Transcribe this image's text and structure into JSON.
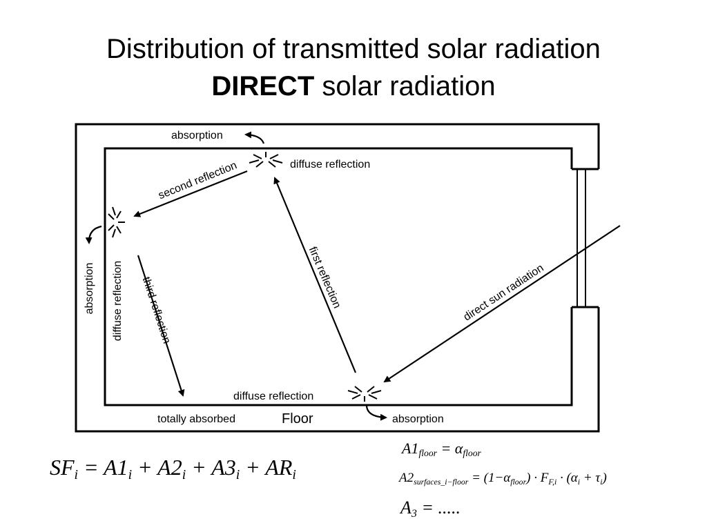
{
  "title": {
    "line1": "Distribution of transmitted solar radiation",
    "line2_bold": "DIRECT",
    "line2_rest": "solar radiation"
  },
  "labels": {
    "absorption_top": "absorption",
    "diffuse_top": "diffuse reflection",
    "second_reflection": "second reflection",
    "diffuse_left": "diffuse reflection",
    "absorption_left": "absorption",
    "third_reflection": "third reflection",
    "first_reflection": "first reflection",
    "direct_sun": "direct sun radiation",
    "diffuse_bottom": "diffuse reflection",
    "totally_absorbed": "totally absorbed",
    "floor": "Floor",
    "absorption_bottom": "absorption"
  },
  "equations": {
    "main": [
      {
        "text": "SF"
      },
      {
        "text": "i",
        "sub": true
      },
      {
        "text": " = A1"
      },
      {
        "text": "i",
        "sub": true
      },
      {
        "text": " + A2"
      },
      {
        "text": "i",
        "sub": true
      },
      {
        "text": " + A3"
      },
      {
        "text": "i",
        "sub": true
      },
      {
        "text": " + AR"
      },
      {
        "text": "i",
        "sub": true
      }
    ],
    "a1": [
      {
        "text": "A1"
      },
      {
        "text": "floor",
        "sub": true
      },
      {
        "text": " = α"
      },
      {
        "text": "floor",
        "sub": true
      }
    ],
    "a2": [
      {
        "text": "A2"
      },
      {
        "text": "surfaces_i−floor",
        "sub": true
      },
      {
        "text": " = (1−α"
      },
      {
        "text": "floor",
        "sub": true
      },
      {
        "text": ") · F"
      },
      {
        "text": "F,i",
        "sub": true
      },
      {
        "text": " · (α"
      },
      {
        "text": "i",
        "sub": true
      },
      {
        "text": " + τ"
      },
      {
        "text": "i",
        "sub": true
      },
      {
        "text": ")"
      }
    ],
    "a3": [
      {
        "text": "A"
      },
      {
        "text": "3",
        "sub": true
      },
      {
        "text": " = ....."
      }
    ]
  }
}
